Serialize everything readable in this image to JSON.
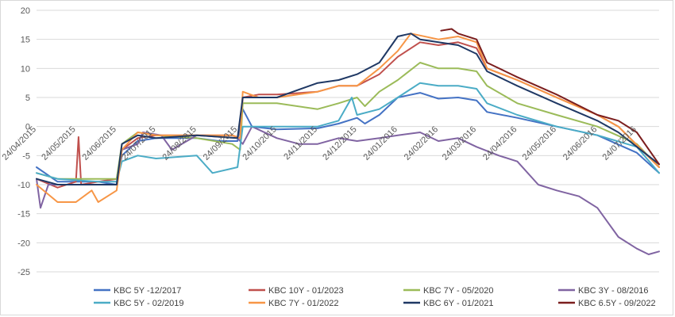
{
  "chart_data": {
    "type": "line",
    "title": "",
    "xlabel": "",
    "ylabel": "",
    "ylim": [
      -25,
      20
    ],
    "y_ticks": [
      "20",
      "15",
      "10",
      "5",
      "0",
      "-5",
      "-10",
      "-15",
      "-20",
      "-25"
    ],
    "x_tick_labels": [
      "24/04/2015",
      "24/05/2015",
      "24/06/2015",
      "24/07/2015",
      "24/08/2015",
      "24/09/2015",
      "24/10/2015",
      "24/11/2015",
      "24/12/2015",
      "24/01/2016",
      "24/02/2016",
      "24/03/2016",
      "24/04/2016",
      "24/05/2016",
      "24/06/2016",
      "24/07/2016"
    ],
    "x_range": [
      "2015-04-24",
      "2016-08-10"
    ],
    "grid": "horizontal",
    "legend_position": "bottom",
    "series": [
      {
        "name": "KBC 5Y -12/2017",
        "color": "#4472c4",
        "points": [
          [
            "2015-04-24",
            -7
          ],
          [
            "2015-05-10",
            -9.5
          ],
          [
            "2015-06-10",
            -9.5
          ],
          [
            "2015-06-24",
            -10
          ],
          [
            "2015-06-28",
            -5
          ],
          [
            "2015-07-10",
            -2.5
          ],
          [
            "2015-07-24",
            -2
          ],
          [
            "2015-08-24",
            -2
          ],
          [
            "2015-09-10",
            -2.5
          ],
          [
            "2015-09-24",
            -2.5
          ],
          [
            "2015-09-28",
            3
          ],
          [
            "2015-10-05",
            0
          ],
          [
            "2015-10-24",
            -0.5
          ],
          [
            "2015-11-24",
            -0.3
          ],
          [
            "2015-12-10",
            0.5
          ],
          [
            "2015-12-24",
            1.5
          ],
          [
            "2015-12-30",
            0.5
          ],
          [
            "2016-01-10",
            2
          ],
          [
            "2016-01-24",
            5
          ],
          [
            "2016-02-10",
            5.8
          ],
          [
            "2016-02-24",
            4.8
          ],
          [
            "2016-03-10",
            5
          ],
          [
            "2016-03-24",
            4.5
          ],
          [
            "2016-04-01",
            2.5
          ],
          [
            "2016-04-24",
            1.5
          ],
          [
            "2016-05-24",
            0
          ],
          [
            "2016-06-24",
            -1.5
          ],
          [
            "2016-07-24",
            -4.5
          ],
          [
            "2016-08-10",
            -8
          ]
        ]
      },
      {
        "name": "KBC 10Y - 01/2023",
        "color": "#c0504d",
        "points": [
          [
            "2015-04-24",
            -9
          ],
          [
            "2015-05-10",
            -10.5
          ],
          [
            "2015-05-24",
            -9.5
          ],
          [
            "2015-05-26",
            -1.8
          ],
          [
            "2015-05-28",
            -10
          ],
          [
            "2015-06-10",
            -9.5
          ],
          [
            "2015-06-24",
            -9
          ],
          [
            "2015-06-28",
            -4
          ],
          [
            "2015-07-10",
            -2
          ],
          [
            "2015-07-24",
            -1.5
          ],
          [
            "2015-08-24",
            -1.5
          ],
          [
            "2015-09-20",
            -1.5
          ],
          [
            "2015-09-26",
            -2
          ],
          [
            "2015-09-28",
            5
          ],
          [
            "2015-10-10",
            5.5
          ],
          [
            "2015-10-24",
            5.5
          ],
          [
            "2015-11-24",
            6
          ],
          [
            "2015-12-10",
            7
          ],
          [
            "2015-12-24",
            7
          ],
          [
            "2016-01-10",
            9
          ],
          [
            "2016-01-24",
            12
          ],
          [
            "2016-02-10",
            14.5
          ],
          [
            "2016-02-24",
            14
          ],
          [
            "2016-03-10",
            14.5
          ],
          [
            "2016-03-24",
            13.5
          ],
          [
            "2016-04-01",
            10
          ],
          [
            "2016-04-24",
            8
          ],
          [
            "2016-05-24",
            5
          ],
          [
            "2016-06-24",
            2
          ],
          [
            "2016-07-10",
            0
          ],
          [
            "2016-08-10",
            -7
          ]
        ]
      },
      {
        "name": "KBC 7Y - 05/2020",
        "color": "#9bbb59",
        "points": [
          [
            "2015-04-24",
            -8
          ],
          [
            "2015-05-10",
            -9
          ],
          [
            "2015-06-10",
            -9
          ],
          [
            "2015-06-24",
            -9
          ],
          [
            "2015-06-28",
            -3
          ],
          [
            "2015-07-10",
            -1
          ],
          [
            "2015-07-24",
            -1.5
          ],
          [
            "2015-08-24",
            -2
          ],
          [
            "2015-09-20",
            -3
          ],
          [
            "2015-09-26",
            -4
          ],
          [
            "2015-09-28",
            4
          ],
          [
            "2015-10-24",
            4
          ],
          [
            "2015-11-24",
            3
          ],
          [
            "2015-12-10",
            4
          ],
          [
            "2015-12-24",
            5
          ],
          [
            "2015-12-30",
            3.5
          ],
          [
            "2016-01-10",
            6
          ],
          [
            "2016-01-24",
            8
          ],
          [
            "2016-02-10",
            11
          ],
          [
            "2016-02-24",
            10
          ],
          [
            "2016-03-10",
            10
          ],
          [
            "2016-03-24",
            9.5
          ],
          [
            "2016-04-01",
            7
          ],
          [
            "2016-04-24",
            4
          ],
          [
            "2016-05-24",
            2
          ],
          [
            "2016-06-24",
            0
          ],
          [
            "2016-07-24",
            -3
          ],
          [
            "2016-08-10",
            -7
          ]
        ]
      },
      {
        "name": "KBC 3Y - 08/2016",
        "color": "#8064a2",
        "points": [
          [
            "2015-04-24",
            -9
          ],
          [
            "2015-04-27",
            -14
          ],
          [
            "2015-05-03",
            -10
          ],
          [
            "2015-05-24",
            -10
          ],
          [
            "2015-06-24",
            -10
          ],
          [
            "2015-06-28",
            -4
          ],
          [
            "2015-07-10",
            -3
          ],
          [
            "2015-07-14",
            -1
          ],
          [
            "2015-07-28",
            -1.5
          ],
          [
            "2015-08-05",
            -4
          ],
          [
            "2015-08-24",
            -1.5
          ],
          [
            "2015-09-24",
            -2
          ],
          [
            "2015-09-28",
            -3
          ],
          [
            "2015-10-05",
            0
          ],
          [
            "2015-10-24",
            -2
          ],
          [
            "2015-11-10",
            -3
          ],
          [
            "2015-11-24",
            -3
          ],
          [
            "2015-12-10",
            -2
          ],
          [
            "2015-12-24",
            -2.5
          ],
          [
            "2016-01-10",
            -2
          ],
          [
            "2016-01-24",
            -1.5
          ],
          [
            "2016-02-10",
            -1
          ],
          [
            "2016-02-24",
            -2.5
          ],
          [
            "2016-03-10",
            -2
          ],
          [
            "2016-03-24",
            -3.5
          ],
          [
            "2016-04-10",
            -5
          ],
          [
            "2016-04-24",
            -6
          ],
          [
            "2016-05-10",
            -10
          ],
          [
            "2016-05-24",
            -11
          ],
          [
            "2016-06-10",
            -12
          ],
          [
            "2016-06-24",
            -14
          ],
          [
            "2016-07-10",
            -19
          ],
          [
            "2016-07-24",
            -21
          ],
          [
            "2016-08-02",
            -22
          ],
          [
            "2016-08-10",
            -21.5
          ]
        ]
      },
      {
        "name": "KBC 5Y - 02/2019",
        "color": "#4bacc6",
        "points": [
          [
            "2015-04-24",
            -8
          ],
          [
            "2015-05-10",
            -9
          ],
          [
            "2015-06-10",
            -9.5
          ],
          [
            "2015-06-24",
            -9.5
          ],
          [
            "2015-06-28",
            -6
          ],
          [
            "2015-07-10",
            -5
          ],
          [
            "2015-07-24",
            -5.5
          ],
          [
            "2015-08-24",
            -5
          ],
          [
            "2015-09-05",
            -8
          ],
          [
            "2015-09-24",
            -7
          ],
          [
            "2015-09-28",
            0
          ],
          [
            "2015-10-24",
            0
          ],
          [
            "2015-11-24",
            0
          ],
          [
            "2015-12-10",
            1
          ],
          [
            "2015-12-20",
            5
          ],
          [
            "2015-12-24",
            2
          ],
          [
            "2016-01-10",
            3
          ],
          [
            "2016-01-24",
            5
          ],
          [
            "2016-02-10",
            7.5
          ],
          [
            "2016-02-24",
            7
          ],
          [
            "2016-03-10",
            7
          ],
          [
            "2016-03-24",
            6.5
          ],
          [
            "2016-04-01",
            4
          ],
          [
            "2016-04-24",
            2
          ],
          [
            "2016-05-24",
            0
          ],
          [
            "2016-06-24",
            -1.5
          ],
          [
            "2016-07-24",
            -3.5
          ],
          [
            "2016-08-10",
            -8
          ]
        ]
      },
      {
        "name": "KBC 7Y - 01/2022",
        "color": "#f79646",
        "points": [
          [
            "2015-04-24",
            -10
          ],
          [
            "2015-05-10",
            -13
          ],
          [
            "2015-05-24",
            -13
          ],
          [
            "2015-06-05",
            -11
          ],
          [
            "2015-06-10",
            -13
          ],
          [
            "2015-06-24",
            -11
          ],
          [
            "2015-06-28",
            -4
          ],
          [
            "2015-07-10",
            -1
          ],
          [
            "2015-07-24",
            -1.5
          ],
          [
            "2015-08-24",
            -1.5
          ],
          [
            "2015-09-20",
            -1.5
          ],
          [
            "2015-09-26",
            -2
          ],
          [
            "2015-09-28",
            6
          ],
          [
            "2015-10-10",
            5
          ],
          [
            "2015-10-24",
            5
          ],
          [
            "2015-11-24",
            6
          ],
          [
            "2015-12-10",
            7
          ],
          [
            "2015-12-24",
            7
          ],
          [
            "2016-01-10",
            10
          ],
          [
            "2016-01-24",
            13
          ],
          [
            "2016-02-03",
            16
          ],
          [
            "2016-02-24",
            15
          ],
          [
            "2016-03-10",
            15.5
          ],
          [
            "2016-03-24",
            14.5
          ],
          [
            "2016-04-01",
            10
          ],
          [
            "2016-04-24",
            8
          ],
          [
            "2016-05-24",
            5
          ],
          [
            "2016-06-24",
            2
          ],
          [
            "2016-07-10",
            0
          ],
          [
            "2016-08-10",
            -7
          ]
        ]
      },
      {
        "name": "KBC 6Y - 01/2021",
        "color": "#1f3864",
        "points": [
          [
            "2015-04-24",
            -9
          ],
          [
            "2015-05-10",
            -10
          ],
          [
            "2015-06-10",
            -10
          ],
          [
            "2015-06-24",
            -10
          ],
          [
            "2015-06-28",
            -3
          ],
          [
            "2015-07-10",
            -1.5
          ],
          [
            "2015-07-24",
            -2
          ],
          [
            "2015-08-24",
            -1.5
          ],
          [
            "2015-09-24",
            -2
          ],
          [
            "2015-09-28",
            5
          ],
          [
            "2015-10-24",
            5
          ],
          [
            "2015-11-24",
            7.5
          ],
          [
            "2015-12-10",
            8
          ],
          [
            "2015-12-24",
            9
          ],
          [
            "2016-01-10",
            11
          ],
          [
            "2016-01-24",
            15.5
          ],
          [
            "2016-02-03",
            16
          ],
          [
            "2016-02-10",
            15
          ],
          [
            "2016-02-24",
            14.5
          ],
          [
            "2016-03-10",
            14
          ],
          [
            "2016-03-24",
            12.5
          ],
          [
            "2016-04-01",
            9.5
          ],
          [
            "2016-04-24",
            7
          ],
          [
            "2016-05-24",
            4
          ],
          [
            "2016-06-24",
            1
          ],
          [
            "2016-07-10",
            -1
          ],
          [
            "2016-08-10",
            -6.5
          ]
        ]
      },
      {
        "name": "KBC 6.5Y - 09/2022",
        "color": "#7b1e1e",
        "points": [
          [
            "2016-02-26",
            16.5
          ],
          [
            "2016-03-05",
            16.8
          ],
          [
            "2016-03-10",
            16
          ],
          [
            "2016-03-24",
            15
          ],
          [
            "2016-04-01",
            11
          ],
          [
            "2016-04-24",
            8.5
          ],
          [
            "2016-05-24",
            5.5
          ],
          [
            "2016-06-24",
            2
          ],
          [
            "2016-07-10",
            1
          ],
          [
            "2016-07-24",
            -1
          ],
          [
            "2016-08-10",
            -6.5
          ]
        ]
      }
    ]
  }
}
